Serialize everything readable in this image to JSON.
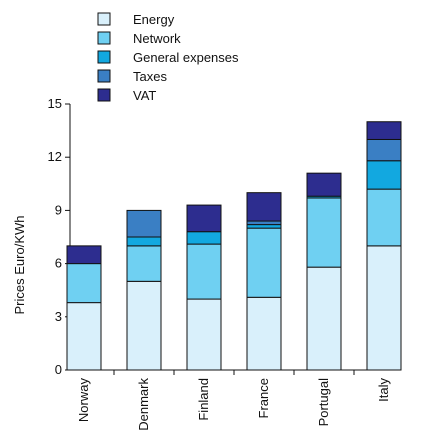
{
  "chart_data": {
    "type": "bar",
    "stacked": true,
    "categories": [
      "Norway",
      "Denmark",
      "Finland",
      "France",
      "Portugal",
      "Italy"
    ],
    "series": [
      {
        "name": "Energy",
        "color": "#d9f0fb",
        "values": [
          3.8,
          5.0,
          4.0,
          4.1,
          5.8,
          7.0
        ]
      },
      {
        "name": "Network",
        "color": "#6fd0f2",
        "values": [
          2.2,
          2.0,
          3.1,
          3.9,
          3.9,
          3.2
        ]
      },
      {
        "name": "General expenses",
        "color": "#12a8e0",
        "values": [
          0.0,
          0.5,
          0.7,
          0.2,
          0.1,
          1.6
        ]
      },
      {
        "name": "Taxes",
        "color": "#3a7fc4",
        "values": [
          0.0,
          1.5,
          0.0,
          0.2,
          0.0,
          1.2
        ]
      },
      {
        "name": "VAT",
        "color": "#2d2d8f",
        "values": [
          1.0,
          0.0,
          1.5,
          1.6,
          1.3,
          1.0
        ]
      }
    ],
    "ylabel": "Prices Euro/KWh",
    "xlabel": "",
    "ylim": [
      0,
      15
    ],
    "yticks": [
      "0",
      "3",
      "6",
      "9",
      "12",
      "15"
    ],
    "grid": false,
    "legend_position": "top"
  }
}
